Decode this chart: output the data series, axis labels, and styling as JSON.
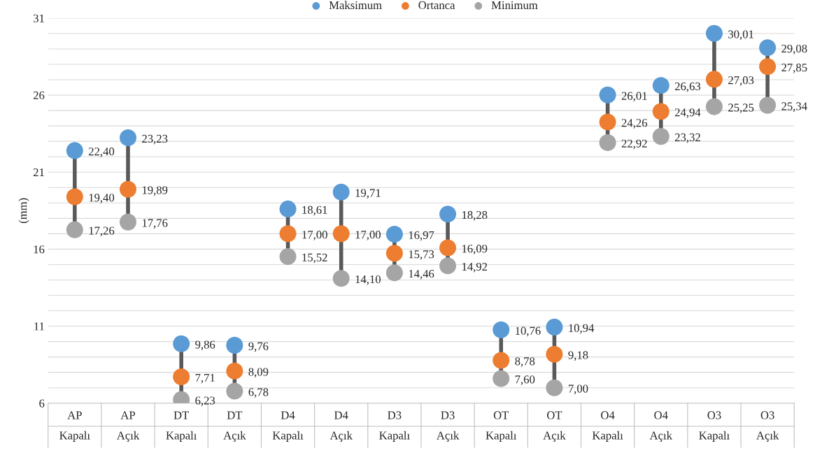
{
  "chart_data": {
    "type": "scatter",
    "ylabel": "(mm)",
    "categories": [
      "AP\nKapalı",
      "AP\nAçık",
      "DT\nKapalı",
      "DT\nAçık",
      "D4\nKapalı",
      "D4\nAçık",
      "D3\nKapalı",
      "D3\nAçık",
      "OT\nKapalı",
      "OT\nAçık",
      "O4\nKapalı",
      "O4\nAçık",
      "O3\nKapalı",
      "O3\nAçık"
    ],
    "series": [
      {
        "name": "Maksimum",
        "color": "#5b9bd5",
        "values": [
          22.4,
          23.23,
          9.86,
          9.76,
          18.61,
          19.71,
          16.97,
          18.28,
          10.76,
          10.94,
          26.01,
          26.63,
          30.01,
          29.08
        ],
        "value_labels": [
          "22,40",
          "23,23",
          "9,86",
          "9,76",
          "18,61",
          "19,71",
          "16,97",
          "18,28",
          "10,76",
          "10,94",
          "26,01",
          "26,63",
          "30,01",
          "29,08"
        ]
      },
      {
        "name": "Ortanca",
        "color": "#ed7d31",
        "values": [
          19.4,
          19.89,
          7.71,
          8.09,
          17.0,
          17.0,
          15.73,
          16.09,
          8.78,
          9.18,
          24.26,
          24.94,
          27.03,
          27.85
        ],
        "value_labels": [
          "19,40",
          "19,89",
          "7,71",
          "8,09",
          "17,00",
          "17,00",
          "15,73",
          "16,09",
          "8,78",
          "9,18",
          "24,26",
          "24,94",
          "27,03",
          "27,85"
        ]
      },
      {
        "name": "Minimum",
        "color": "#a5a5a5",
        "values": [
          17.26,
          17.76,
          6.23,
          6.78,
          15.52,
          14.1,
          14.46,
          14.92,
          7.6,
          7.0,
          22.92,
          23.32,
          25.25,
          25.34
        ],
        "value_labels": [
          "17,26",
          "17,76",
          "6,23",
          "6,78",
          "15,52",
          "14,10",
          "14,46",
          "14,92",
          "7,60",
          "7,00",
          "22,92",
          "23,32",
          "25,25",
          "25,34"
        ]
      }
    ],
    "ylim": [
      6,
      31
    ],
    "yticks": [
      6,
      {
        "value": 7,
        "label": null
      },
      {
        "value": 8,
        "label": null
      },
      {
        "value": 9,
        "label": null
      },
      {
        "value": 10,
        "label": null
      },
      11,
      {
        "value": 12,
        "label": null
      },
      {
        "value": 13,
        "label": null
      },
      {
        "value": 14,
        "label": null
      },
      {
        "value": 15,
        "label": null
      },
      16,
      {
        "value": 17,
        "label": null
      },
      {
        "value": 18,
        "label": null
      },
      {
        "value": 19,
        "label": null
      },
      {
        "value": 20,
        "label": null
      },
      21,
      {
        "value": 22,
        "label": null
      },
      {
        "value": 23,
        "label": null
      },
      {
        "value": 24,
        "label": null
      },
      {
        "value": 25,
        "label": null
      },
      26,
      {
        "value": 27,
        "label": null
      },
      {
        "value": 28,
        "label": null
      },
      {
        "value": 29,
        "label": null
      },
      {
        "value": 30,
        "label": null
      },
      31
    ],
    "grid": "y",
    "legend": "top",
    "marker": "circle"
  }
}
